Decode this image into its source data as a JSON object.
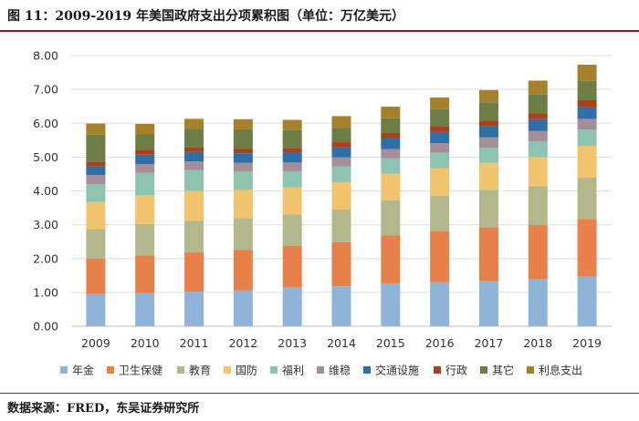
{
  "figure": {
    "title": "图 11：2009-2019 年美国政府支出分项累积图（单位：万亿美元）",
    "source": "数据来源：FRED，东吴证券研究所"
  },
  "chart_data": {
    "type": "bar",
    "stacked": true,
    "title": "",
    "xlabel": "",
    "ylabel": "",
    "ylim": [
      0,
      8
    ],
    "y_ticks": [
      "0.00",
      "1.00",
      "2.00",
      "3.00",
      "4.00",
      "5.00",
      "6.00",
      "7.00",
      "8.00"
    ],
    "grid": true,
    "legend_position": "bottom",
    "categories": [
      "2009",
      "2010",
      "2011",
      "2012",
      "2013",
      "2014",
      "2015",
      "2016",
      "2017",
      "2018",
      "2019"
    ],
    "series": [
      {
        "name": "年金",
        "color": "#8fb4d8",
        "values": [
          0.95,
          0.98,
          1.02,
          1.06,
          1.14,
          1.18,
          1.26,
          1.3,
          1.33,
          1.39,
          1.47
        ]
      },
      {
        "name": "卫生保健",
        "color": "#e8804a",
        "values": [
          1.05,
          1.11,
          1.17,
          1.2,
          1.23,
          1.3,
          1.42,
          1.52,
          1.59,
          1.6,
          1.7
        ]
      },
      {
        "name": "教育",
        "color": "#b3b88c",
        "values": [
          0.87,
          0.93,
          0.93,
          0.93,
          0.93,
          0.97,
          1.04,
          1.04,
          1.11,
          1.15,
          1.22
        ]
      },
      {
        "name": "国防",
        "color": "#f2c46d",
        "values": [
          0.8,
          0.85,
          0.88,
          0.84,
          0.81,
          0.8,
          0.79,
          0.81,
          0.8,
          0.86,
          0.94
        ]
      },
      {
        "name": "福利",
        "color": "#8cc4b0",
        "values": [
          0.53,
          0.66,
          0.62,
          0.54,
          0.46,
          0.47,
          0.45,
          0.46,
          0.45,
          0.46,
          0.48
        ]
      },
      {
        "name": "维稳",
        "color": "#a38e99",
        "values": [
          0.27,
          0.26,
          0.25,
          0.26,
          0.27,
          0.27,
          0.28,
          0.28,
          0.3,
          0.31,
          0.32
        ]
      },
      {
        "name": "交通设施",
        "color": "#2f6fa8",
        "values": [
          0.26,
          0.28,
          0.28,
          0.28,
          0.29,
          0.3,
          0.31,
          0.33,
          0.33,
          0.35,
          0.36
        ]
      },
      {
        "name": "行政",
        "color": "#a8421e",
        "values": [
          0.14,
          0.15,
          0.14,
          0.14,
          0.14,
          0.15,
          0.16,
          0.17,
          0.17,
          0.18,
          0.19
        ]
      },
      {
        "name": "其它",
        "color": "#6e7d44",
        "values": [
          0.79,
          0.45,
          0.54,
          0.57,
          0.53,
          0.43,
          0.44,
          0.51,
          0.54,
          0.55,
          0.57
        ]
      },
      {
        "name": "利息支出",
        "color": "#a4812a",
        "values": [
          0.33,
          0.31,
          0.3,
          0.3,
          0.3,
          0.34,
          0.34,
          0.34,
          0.36,
          0.41,
          0.48
        ]
      }
    ]
  }
}
